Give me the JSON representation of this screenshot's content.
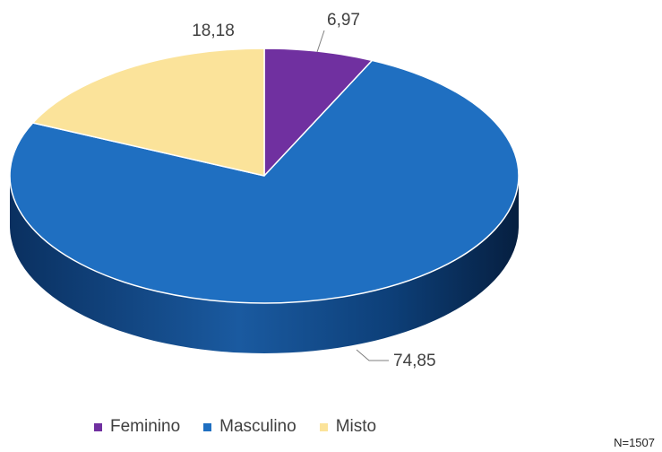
{
  "chart_data": {
    "type": "pie",
    "categories": [
      "Feminino",
      "Masculino",
      "Misto"
    ],
    "values": [
      6.97,
      74.85,
      18.18
    ],
    "labels": [
      "6,97",
      "74,85",
      "18,18"
    ],
    "colors": [
      "#7030A0",
      "#1F6FC1",
      "#FBE39A"
    ],
    "legend": "bottom",
    "note": "N=1507",
    "style": "3d"
  }
}
